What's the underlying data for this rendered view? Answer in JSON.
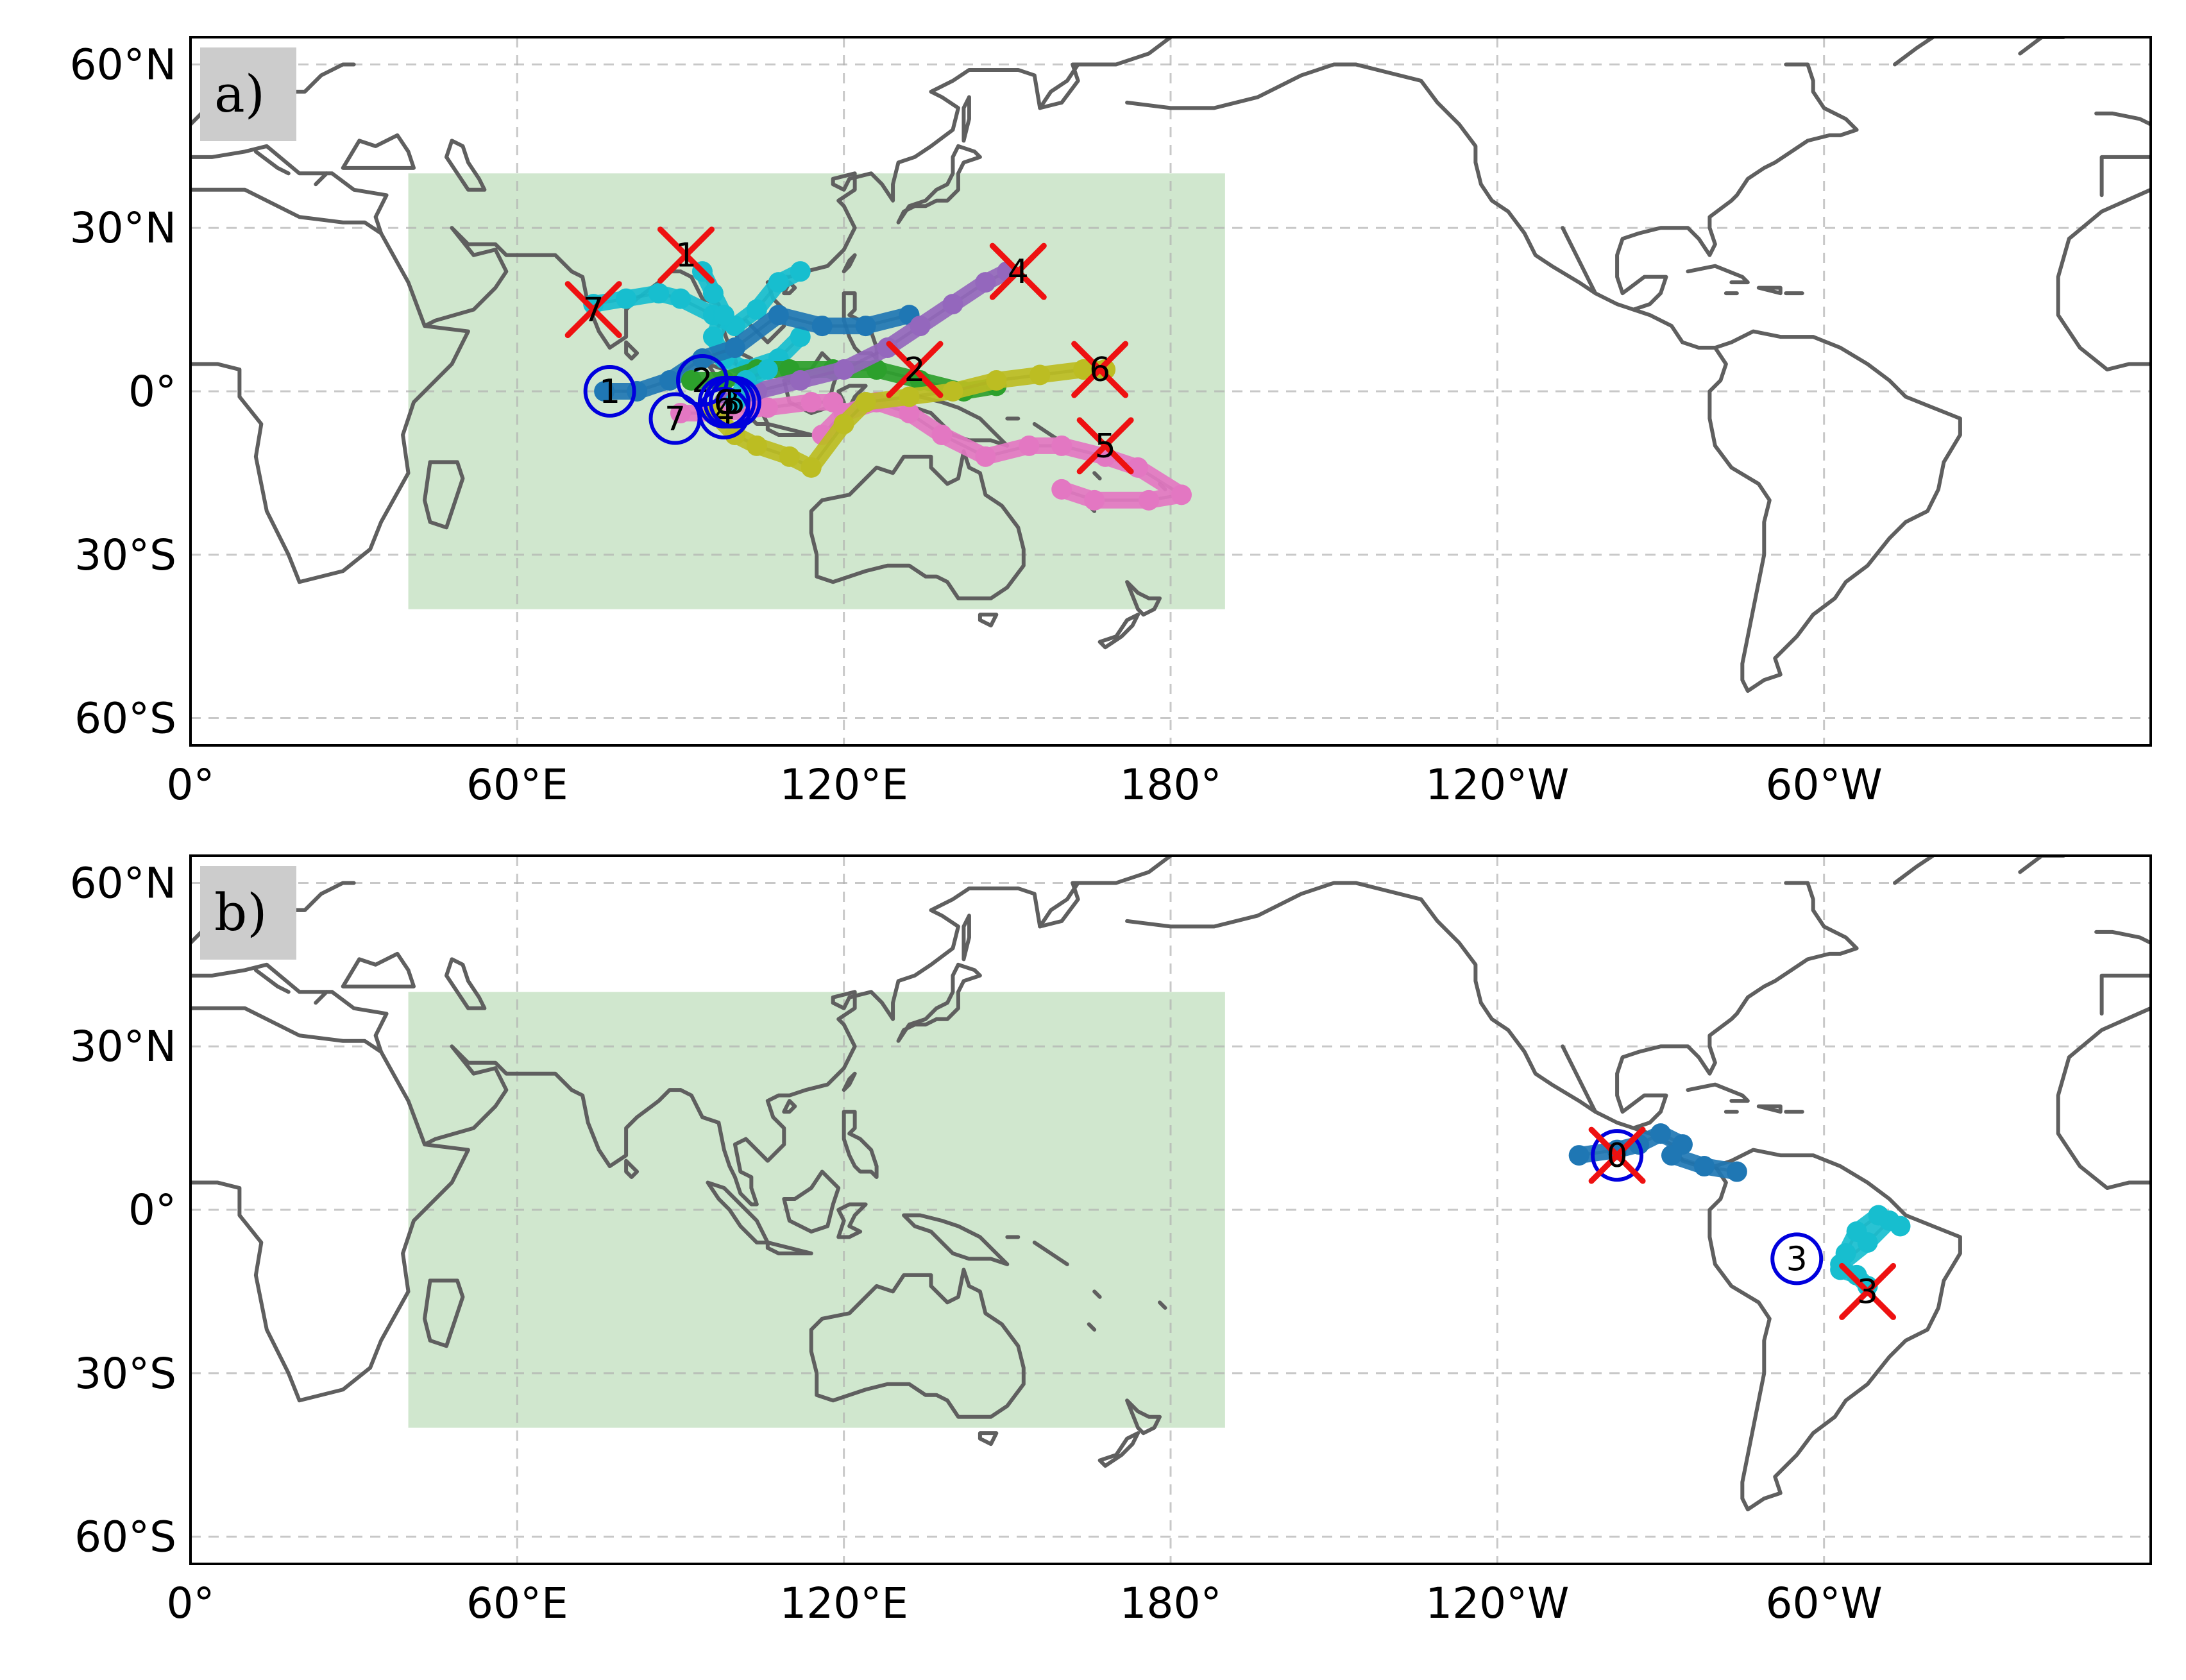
{
  "figure": {
    "x_ticks": [
      "0°",
      "60°E",
      "120°E",
      "180°",
      "120°W",
      "60°W"
    ],
    "y_ticks": [
      "60°N",
      "30°N",
      "0°",
      "30°S",
      "60°S"
    ]
  },
  "colors": {
    "region_box": "#a9d3a6",
    "coastline": "#5f5f5f",
    "genesis_circle": "#0000dd",
    "lysis_cross": "#ee1111",
    "track_palette": [
      "#1f77b4",
      "#2ca02c",
      "#9467bd",
      "#e377c2",
      "#bcbd22",
      "#17becf",
      "#8c564b"
    ]
  },
  "panels": [
    {
      "label": "a)",
      "region": {
        "lon": [
          40,
          190
        ],
        "lat": [
          -40,
          40
        ]
      },
      "tracks": [
        {
          "color": "#17becf",
          "points": [
            [
              74,
              16
            ],
            [
              80,
              17
            ],
            [
              86,
              18
            ],
            [
              90,
              17
            ],
            [
              96,
              14
            ],
            [
              100,
              12
            ],
            [
              104,
              15
            ],
            [
              108,
              20
            ],
            [
              112,
              22
            ]
          ]
        },
        {
          "color": "#17becf",
          "points": [
            [
              94,
              22
            ],
            [
              96,
              18
            ],
            [
              98,
              14
            ],
            [
              96,
              10
            ],
            [
              98,
              6
            ],
            [
              102,
              4
            ],
            [
              108,
              6
            ],
            [
              112,
              10
            ]
          ]
        },
        {
          "color": "#1f77b4",
          "points": [
            [
              76,
              0
            ],
            [
              82,
              0
            ],
            [
              88,
              2
            ],
            [
              94,
              6
            ],
            [
              100,
              8
            ],
            [
              108,
              14
            ],
            [
              116,
              12
            ],
            [
              124,
              12
            ],
            [
              132,
              14
            ]
          ]
        },
        {
          "color": "#2ca02c",
          "points": [
            [
              92,
              2
            ],
            [
              98,
              2
            ],
            [
              104,
              4
            ],
            [
              110,
              4
            ],
            [
              118,
              4
            ],
            [
              126,
              4
            ],
            [
              134,
              2
            ],
            [
              142,
              0
            ],
            [
              148,
              1
            ]
          ]
        },
        {
          "color": "#9467bd",
          "points": [
            [
              98,
              -2
            ],
            [
              104,
              0
            ],
            [
              112,
              2
            ],
            [
              120,
              4
            ],
            [
              128,
              8
            ],
            [
              134,
              12
            ],
            [
              140,
              16
            ],
            [
              146,
              20
            ],
            [
              150,
              22
            ]
          ]
        },
        {
          "color": "#e377c2",
          "points": [
            [
              90,
              -4
            ],
            [
              98,
              -4
            ],
            [
              106,
              -3
            ],
            [
              114,
              -2
            ],
            [
              118,
              -2
            ]
          ]
        },
        {
          "color": "#e377c2",
          "points": [
            [
              116,
              -8
            ],
            [
              120,
              -4
            ],
            [
              126,
              -2
            ],
            [
              132,
              -4
            ],
            [
              138,
              -8
            ],
            [
              146,
              -12
            ],
            [
              154,
              -10
            ],
            [
              160,
              -10
            ],
            [
              168,
              -12
            ],
            [
              174,
              -14
            ],
            [
              182,
              -19
            ],
            [
              176,
              -20
            ],
            [
              166,
              -20
            ],
            [
              160,
              -18
            ]
          ]
        },
        {
          "color": "#bcbd22",
          "points": [
            [
              96,
              -4
            ],
            [
              100,
              -8
            ],
            [
              104,
              -10
            ],
            [
              110,
              -12
            ],
            [
              114,
              -14
            ],
            [
              120,
              -6
            ],
            [
              124,
              -2
            ],
            [
              132,
              -1
            ],
            [
              140,
              0
            ],
            [
              148,
              2
            ],
            [
              156,
              3
            ],
            [
              164,
              4
            ],
            [
              168,
              4
            ]
          ]
        },
        {
          "color": "#17becf",
          "points": [
            [
              100,
              -2
            ],
            [
              102,
              2
            ],
            [
              106,
              4
            ]
          ]
        }
      ],
      "genesis": [
        {
          "label": "1",
          "lon": 77,
          "lat": 0
        },
        {
          "label": "2",
          "lon": 94,
          "lat": 2
        },
        {
          "label": "3",
          "lon": 99,
          "lat": -2
        },
        {
          "label": "4",
          "lon": 98,
          "lat": -4
        },
        {
          "label": "5",
          "lon": 100,
          "lat": -2
        },
        {
          "label": "6",
          "lon": 98,
          "lat": -2
        },
        {
          "label": "7",
          "lon": 89,
          "lat": -5
        }
      ],
      "lysis": [
        {
          "label": "1",
          "lon": 91,
          "lat": 25
        },
        {
          "label": "2",
          "lon": 133,
          "lat": 4
        },
        {
          "label": "4",
          "lon": 152,
          "lat": 22
        },
        {
          "label": "5",
          "lon": 168,
          "lat": -10
        },
        {
          "label": "6",
          "lon": 167,
          "lat": 4
        },
        {
          "label": "7",
          "lon": 74,
          "lat": 15
        }
      ]
    },
    {
      "label": "b)",
      "region": {
        "lon": [
          40,
          190
        ],
        "lat": [
          -40,
          40
        ]
      },
      "tracks": [
        {
          "color": "#1f77b4",
          "points": [
            [
              255,
              10
            ],
            [
              262,
              11
            ],
            [
              266,
              12
            ],
            [
              270,
              14
            ],
            [
              274,
              12
            ],
            [
              272,
              10
            ],
            [
              278,
              8
            ],
            [
              284,
              7
            ]
          ]
        },
        {
          "color": "#17becf",
          "points": [
            [
              303,
              -10
            ],
            [
              308,
              -6
            ],
            [
              312,
              -2
            ],
            [
              314,
              -3
            ],
            [
              310,
              -1
            ],
            [
              306,
              -4
            ],
            [
              304,
              -8
            ]
          ]
        },
        {
          "color": "#17becf",
          "points": [
            [
              303,
              -11
            ],
            [
              306,
              -12
            ],
            [
              308,
              -14
            ]
          ]
        }
      ],
      "genesis": [
        {
          "label": "0",
          "lon": 262,
          "lat": 10
        },
        {
          "label": "3",
          "lon": 295,
          "lat": -9
        }
      ],
      "lysis": [
        {
          "label": "0",
          "lon": 262,
          "lat": 10
        },
        {
          "label": "3",
          "lon": 308,
          "lat": -15
        }
      ]
    }
  ]
}
